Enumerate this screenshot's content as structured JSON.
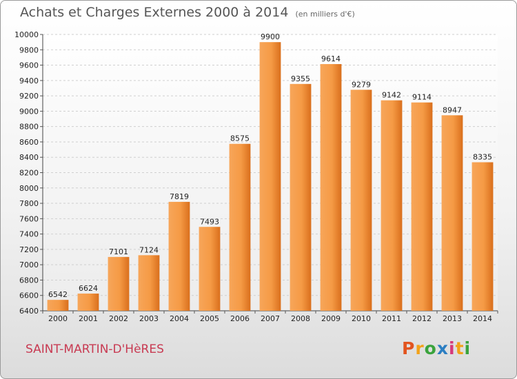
{
  "header": {
    "title": "Achats et Charges Externes 2000 à 2014",
    "subtitle": "(en milliers d'€)"
  },
  "footer": {
    "city": "SAINT-MARTIN-D'HèRES",
    "logo": "Proxiti"
  },
  "colors": {
    "bar_light": "#f7a65a",
    "bar_dark": "#d96f1c",
    "accent": "#c83a52"
  },
  "chart_data": {
    "type": "bar",
    "title": "Achats et Charges Externes 2000 à 2014",
    "subtitle": "(en milliers d'€)",
    "xlabel": "",
    "ylabel": "",
    "categories": [
      "2000",
      "2001",
      "2002",
      "2003",
      "2004",
      "2005",
      "2006",
      "2007",
      "2008",
      "2009",
      "2010",
      "2011",
      "2012",
      "2013",
      "2014"
    ],
    "values": [
      6542,
      6624,
      7101,
      7124,
      7819,
      7493,
      8575,
      9900,
      9355,
      9614,
      9279,
      9142,
      9114,
      8947,
      8335
    ],
    "ylim": [
      6400,
      10000
    ],
    "yticks": [
      6400,
      6600,
      6800,
      7000,
      7200,
      7400,
      7600,
      7800,
      8000,
      8200,
      8400,
      8600,
      8800,
      9000,
      9200,
      9400,
      9600,
      9800,
      10000
    ],
    "grid": true,
    "legend": "none"
  }
}
